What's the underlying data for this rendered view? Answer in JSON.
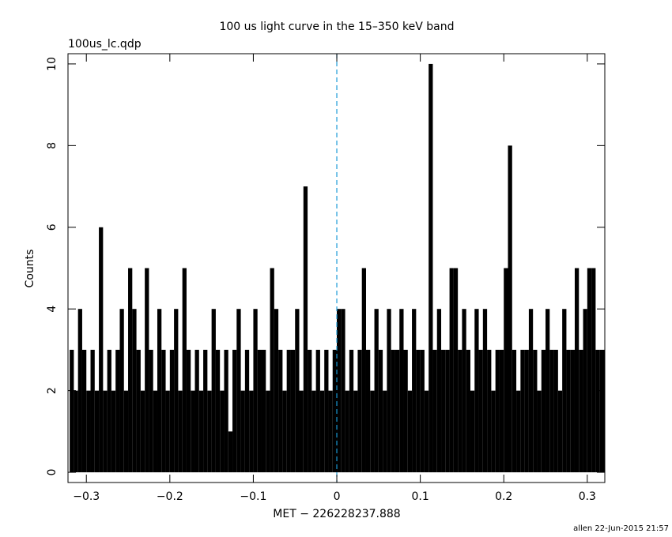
{
  "chart_data": {
    "type": "step-histogram",
    "title": "100 us light curve in the 15–350 keV band",
    "subtitle": "100us_lc.qdp",
    "xlabel": "MET − 226228237.888",
    "ylabel": "Counts",
    "footer": "allen 22-Jun-2015 21:57",
    "color": "#000000",
    "xlim": [
      -0.322,
      0.321
    ],
    "ylim": [
      -0.25,
      10.25
    ],
    "xticks": [
      {
        "value": -0.3,
        "label": "−0.3"
      },
      {
        "value": -0.2,
        "label": "−0.2"
      },
      {
        "value": -0.1,
        "label": "−0.1"
      },
      0,
      0.1,
      0.2,
      0.3
    ],
    "yticks": [
      0,
      2,
      4,
      6,
      8,
      10
    ],
    "reference_line": {
      "x": 0,
      "color": "#1a9ad6",
      "style": "dashed"
    },
    "x": [
      -0.32,
      -0.315,
      -0.31,
      -0.305,
      -0.3,
      -0.295,
      -0.29,
      -0.285,
      -0.28,
      -0.275,
      -0.27,
      -0.265,
      -0.26,
      -0.255,
      -0.25,
      -0.245,
      -0.24,
      -0.235,
      -0.23,
      -0.225,
      -0.22,
      -0.215,
      -0.21,
      -0.205,
      -0.2,
      -0.195,
      -0.19,
      -0.185,
      -0.18,
      -0.175,
      -0.17,
      -0.165,
      -0.16,
      -0.155,
      -0.15,
      -0.145,
      -0.14,
      -0.135,
      -0.13,
      -0.125,
      -0.12,
      -0.115,
      -0.11,
      -0.105,
      -0.1,
      -0.095,
      -0.09,
      -0.085,
      -0.08,
      -0.075,
      -0.07,
      -0.065,
      -0.06,
      -0.055,
      -0.05,
      -0.045,
      -0.04,
      -0.035,
      -0.03,
      -0.025,
      -0.02,
      -0.015,
      -0.01,
      -0.005,
      0,
      0.005,
      0.01,
      0.015,
      0.02,
      0.025,
      0.03,
      0.035,
      0.04,
      0.045,
      0.05,
      0.055,
      0.06,
      0.065,
      0.07,
      0.075,
      0.08,
      0.085,
      0.09,
      0.095,
      0.1,
      0.105,
      0.11,
      0.115,
      0.12,
      0.125,
      0.13,
      0.135,
      0.14,
      0.145,
      0.15,
      0.155,
      0.16,
      0.165,
      0.17,
      0.175,
      0.18,
      0.185,
      0.19,
      0.195,
      0.2,
      0.205,
      0.21,
      0.215,
      0.22,
      0.225,
      0.23,
      0.235,
      0.24,
      0.245,
      0.25,
      0.255,
      0.26,
      0.265,
      0.27,
      0.275,
      0.28,
      0.285,
      0.29,
      0.295,
      0.3,
      0.305,
      0.31,
      0.315
    ],
    "values": [
      3,
      2,
      4,
      3,
      2,
      3,
      2,
      6,
      2,
      3,
      2,
      3,
      4,
      2,
      5,
      4,
      3,
      2,
      5,
      3,
      2,
      4,
      3,
      2,
      3,
      4,
      2,
      5,
      3,
      2,
      3,
      2,
      3,
      2,
      4,
      3,
      2,
      3,
      1,
      3,
      4,
      2,
      3,
      2,
      4,
      3,
      3,
      2,
      5,
      4,
      3,
      2,
      3,
      3,
      4,
      2,
      7,
      3,
      2,
      3,
      2,
      3,
      2,
      3,
      4,
      4,
      2,
      3,
      2,
      3,
      5,
      3,
      2,
      4,
      3,
      2,
      4,
      3,
      3,
      4,
      3,
      2,
      4,
      3,
      3,
      2,
      10,
      3,
      4,
      3,
      3,
      5,
      5,
      3,
      4,
      3,
      2,
      4,
      3,
      4,
      3,
      2,
      3,
      3,
      5,
      8,
      3,
      2,
      3,
      3,
      4,
      3,
      2,
      3,
      4,
      3,
      3,
      2,
      4,
      3,
      3,
      5,
      3,
      4,
      5,
      5,
      3,
      3
    ]
  }
}
